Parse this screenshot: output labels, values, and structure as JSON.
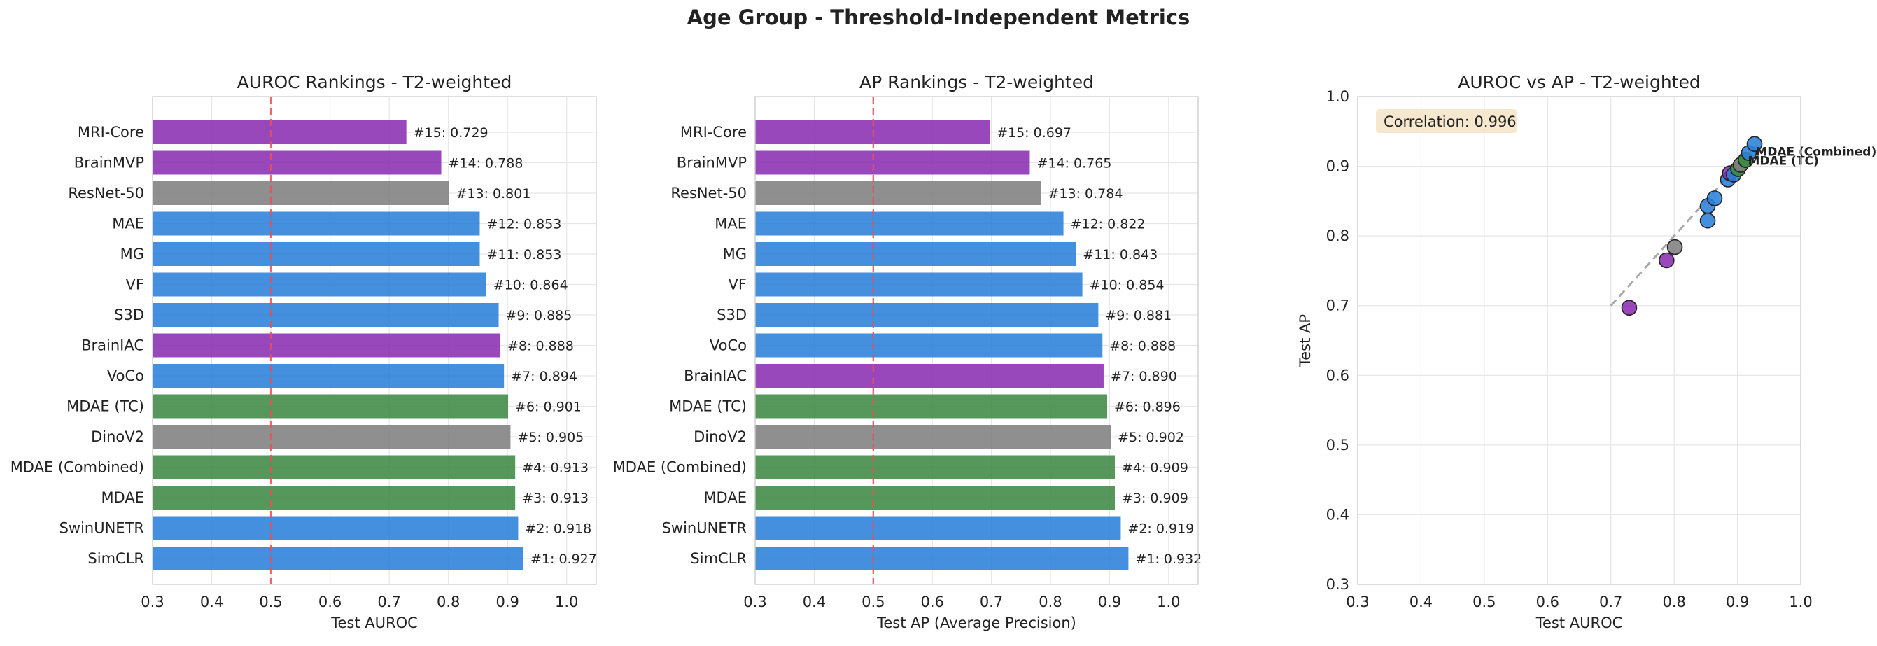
{
  "suptitle": "Age Group - Threshold-Independent Metrics",
  "colors": {
    "purple": "#8B2FB3",
    "gray": "#7F7F7F",
    "blue": "#2A7FD9",
    "green": "#3F8A45",
    "threshold": "#E8505B",
    "grid": "#E6E6E6",
    "diag": "#AAAAAA",
    "box": "#F4E4C6"
  },
  "chart_data": [
    {
      "type": "bar",
      "orientation": "horizontal",
      "title": "AUROC Rankings - T2-weighted",
      "xlabel": "Test AUROC",
      "ylabel": "",
      "xlim": [
        0.3,
        1.05
      ],
      "xticks": [
        "0.3",
        "0.4",
        "0.5",
        "0.6",
        "0.7",
        "0.8",
        "0.9",
        "1.0"
      ],
      "reference_line": 0.5,
      "categories": [
        "MRI-Core",
        "BrainMVP",
        "ResNet-50",
        "MAE",
        "MG",
        "VF",
        "S3D",
        "BrainIAC",
        "VoCo",
        "MDAE (TC)",
        "DinoV2",
        "MDAE (Combined)",
        "MDAE",
        "SwinUNETR",
        "SimCLR"
      ],
      "values": [
        0.729,
        0.788,
        0.801,
        0.853,
        0.853,
        0.864,
        0.885,
        0.888,
        0.894,
        0.901,
        0.905,
        0.913,
        0.913,
        0.918,
        0.927
      ],
      "labels": [
        "#15: 0.729",
        "#14: 0.788",
        "#13: 0.801",
        "#12: 0.853",
        "#11: 0.853",
        "#10: 0.864",
        "#9: 0.885",
        "#8: 0.888",
        "#7: 0.894",
        "#6: 0.901",
        "#5: 0.905",
        "#4: 0.913",
        "#3: 0.913",
        "#2: 0.918",
        "#1: 0.927"
      ],
      "bar_colors": [
        "purple",
        "purple",
        "gray",
        "blue",
        "blue",
        "blue",
        "blue",
        "purple",
        "blue",
        "green",
        "gray",
        "green",
        "green",
        "blue",
        "blue"
      ],
      "grid": true
    },
    {
      "type": "bar",
      "orientation": "horizontal",
      "title": "AP Rankings - T2-weighted",
      "xlabel": "Test AP (Average Precision)",
      "ylabel": "",
      "xlim": [
        0.3,
        1.05
      ],
      "xticks": [
        "0.3",
        "0.4",
        "0.5",
        "0.6",
        "0.7",
        "0.8",
        "0.9",
        "1.0"
      ],
      "reference_line": 0.5,
      "categories": [
        "MRI-Core",
        "BrainMVP",
        "ResNet-50",
        "MAE",
        "MG",
        "VF",
        "S3D",
        "VoCo",
        "BrainIAC",
        "MDAE (TC)",
        "DinoV2",
        "MDAE (Combined)",
        "MDAE",
        "SwinUNETR",
        "SimCLR"
      ],
      "values": [
        0.697,
        0.765,
        0.784,
        0.822,
        0.843,
        0.854,
        0.881,
        0.888,
        0.89,
        0.896,
        0.902,
        0.909,
        0.909,
        0.919,
        0.932
      ],
      "labels": [
        "#15: 0.697",
        "#14: 0.765",
        "#13: 0.784",
        "#12: 0.822",
        "#11: 0.843",
        "#10: 0.854",
        "#9: 0.881",
        "#8: 0.888",
        "#7: 0.890",
        "#6: 0.896",
        "#5: 0.902",
        "#4: 0.909",
        "#3: 0.909",
        "#2: 0.919",
        "#1: 0.932"
      ],
      "bar_colors": [
        "purple",
        "purple",
        "gray",
        "blue",
        "blue",
        "blue",
        "blue",
        "blue",
        "purple",
        "green",
        "gray",
        "green",
        "green",
        "blue",
        "blue"
      ],
      "grid": true
    },
    {
      "type": "scatter",
      "title": "AUROC vs AP - T2-weighted",
      "xlabel": "Test AUROC",
      "ylabel": "Test AP",
      "xlim": [
        0.3,
        1.0
      ],
      "ylim": [
        0.3,
        1.0
      ],
      "xticks": [
        "0.3",
        "0.4",
        "0.5",
        "0.6",
        "0.7",
        "0.8",
        "0.9",
        "1.0"
      ],
      "yticks": [
        "0.3",
        "0.4",
        "0.5",
        "0.6",
        "0.7",
        "0.8",
        "0.9",
        "1.0"
      ],
      "annotation": "Correlation: 0.996",
      "diagonal": [
        0.7,
        0.93
      ],
      "points": [
        {
          "x": 0.729,
          "y": 0.697,
          "color": "purple"
        },
        {
          "x": 0.788,
          "y": 0.765,
          "color": "purple"
        },
        {
          "x": 0.801,
          "y": 0.784,
          "color": "gray"
        },
        {
          "x": 0.853,
          "y": 0.822,
          "color": "blue"
        },
        {
          "x": 0.853,
          "y": 0.843,
          "color": "blue"
        },
        {
          "x": 0.864,
          "y": 0.854,
          "color": "blue"
        },
        {
          "x": 0.885,
          "y": 0.881,
          "color": "blue"
        },
        {
          "x": 0.888,
          "y": 0.89,
          "color": "purple"
        },
        {
          "x": 0.894,
          "y": 0.888,
          "color": "blue"
        },
        {
          "x": 0.901,
          "y": 0.896,
          "color": "green"
        },
        {
          "x": 0.905,
          "y": 0.902,
          "color": "gray"
        },
        {
          "x": 0.913,
          "y": 0.909,
          "color": "green"
        },
        {
          "x": 0.913,
          "y": 0.909,
          "color": "green"
        },
        {
          "x": 0.918,
          "y": 0.919,
          "color": "blue"
        },
        {
          "x": 0.927,
          "y": 0.932,
          "color": "blue"
        }
      ],
      "point_labels": [
        {
          "text": "MDAE (Combined)",
          "x": 0.913,
          "y": 0.909
        },
        {
          "text": "MDAE (TC)",
          "x": 0.901,
          "y": 0.896
        }
      ],
      "grid": true
    }
  ]
}
